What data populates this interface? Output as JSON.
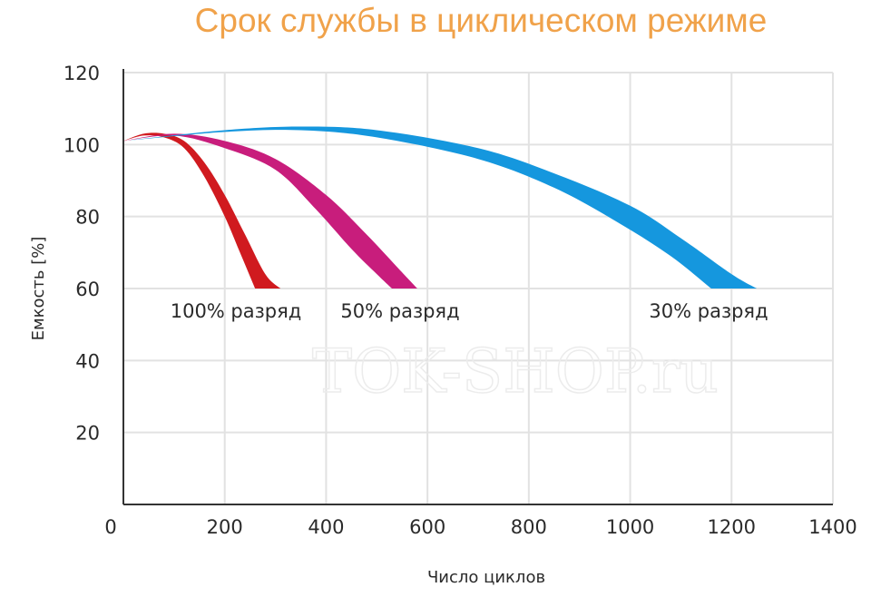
{
  "chart_data": {
    "type": "area",
    "title": "Срок службы в циклическом режиме",
    "xlabel": "Число циклов",
    "ylabel": "Емкость [%]",
    "xlim": [
      0,
      1400
    ],
    "ylim": [
      0,
      120
    ],
    "x_ticks": [
      "0",
      "200",
      "400",
      "600",
      "800",
      "1000",
      "1200",
      "1400"
    ],
    "y_ticks": [
      "20",
      "40",
      "60",
      "80",
      "100",
      "120"
    ],
    "grid": true,
    "series": [
      {
        "name": "100% разряд",
        "color": "#d01a1f",
        "upper": [
          [
            0,
            101
          ],
          [
            40,
            103
          ],
          [
            80,
            103
          ],
          [
            120,
            101
          ],
          [
            160,
            95
          ],
          [
            200,
            86
          ],
          [
            240,
            75
          ],
          [
            280,
            64
          ],
          [
            310,
            60
          ]
        ],
        "lower": [
          [
            0,
            101
          ],
          [
            40,
            102.5
          ],
          [
            80,
            102
          ],
          [
            120,
            99
          ],
          [
            160,
            91
          ],
          [
            200,
            80
          ],
          [
            230,
            70
          ],
          [
            260,
            60
          ]
        ]
      },
      {
        "name": "50% разряд",
        "color": "#c81d7c",
        "upper": [
          [
            0,
            101
          ],
          [
            100,
            103
          ],
          [
            200,
            101
          ],
          [
            300,
            96
          ],
          [
            400,
            86
          ],
          [
            480,
            75
          ],
          [
            540,
            66
          ],
          [
            580,
            60
          ]
        ],
        "lower": [
          [
            0,
            101
          ],
          [
            100,
            102.5
          ],
          [
            200,
            99
          ],
          [
            300,
            93
          ],
          [
            380,
            82
          ],
          [
            450,
            71
          ],
          [
            500,
            64
          ],
          [
            530,
            60
          ]
        ]
      },
      {
        "name": "30% разряд",
        "color": "#1597de",
        "upper": [
          [
            0,
            101
          ],
          [
            200,
            104
          ],
          [
            350,
            105
          ],
          [
            500,
            104
          ],
          [
            700,
            99
          ],
          [
            850,
            92
          ],
          [
            1000,
            83
          ],
          [
            1100,
            74
          ],
          [
            1200,
            64
          ],
          [
            1250,
            60
          ]
        ],
        "lower": [
          [
            0,
            101
          ],
          [
            200,
            103.5
          ],
          [
            350,
            104
          ],
          [
            500,
            102
          ],
          [
            700,
            96
          ],
          [
            850,
            88
          ],
          [
            980,
            78
          ],
          [
            1080,
            69
          ],
          [
            1160,
            60
          ]
        ]
      }
    ]
  },
  "watermark": "TOK-SHOP.ru"
}
